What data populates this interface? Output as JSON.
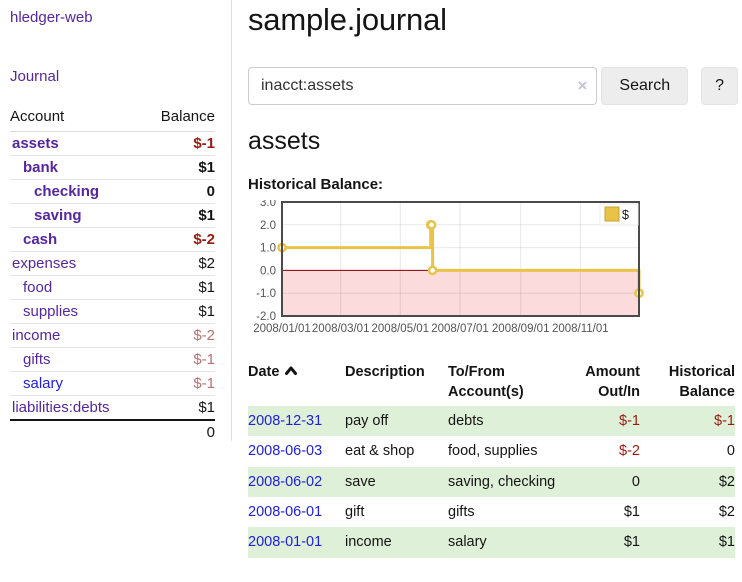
{
  "colors": {
    "link_purple": "#5526a0",
    "link_blue": "#2020dd",
    "negative_strong": "#991b10",
    "negative_soft": "#b97070",
    "row_stripe_green": "#dff0d8",
    "chart_series_yellow": "#e9c347"
  },
  "sidebar": {
    "brand": "hledger-web",
    "journal_link": "Journal",
    "accounts": {
      "headers": [
        "Account",
        "Balance"
      ],
      "rows": [
        {
          "name": "assets",
          "balance": "$-1",
          "indent": 0,
          "bold": true,
          "balance_style": "neg-strong",
          "link_style": "purple"
        },
        {
          "name": "bank",
          "balance": "$1",
          "indent": 1,
          "bold": true,
          "balance_style": "pos",
          "link_style": "purple"
        },
        {
          "name": "checking",
          "balance": "0",
          "indent": 2,
          "bold": true,
          "balance_style": "pos",
          "link_style": "purple"
        },
        {
          "name": "saving",
          "balance": "$1",
          "indent": 2,
          "bold": true,
          "balance_style": "pos",
          "link_style": "purple"
        },
        {
          "name": "cash",
          "balance": "$-2",
          "indent": 1,
          "bold": true,
          "balance_style": "neg-strong",
          "link_style": "purple"
        },
        {
          "name": "expenses",
          "balance": "$2",
          "indent": 0,
          "bold": false,
          "balance_style": "pos",
          "link_style": "purple"
        },
        {
          "name": "food",
          "balance": "$1",
          "indent": 1,
          "bold": false,
          "balance_style": "pos",
          "link_style": "purple"
        },
        {
          "name": "supplies",
          "balance": "$1",
          "indent": 1,
          "bold": false,
          "balance_style": "pos",
          "link_style": "purple"
        },
        {
          "name": "income",
          "balance": "$-2",
          "indent": 0,
          "bold": false,
          "balance_style": "neg-soft",
          "link_style": "purple"
        },
        {
          "name": "gifts",
          "balance": "$-1",
          "indent": 1,
          "bold": false,
          "balance_style": "neg-soft",
          "link_style": "purple"
        },
        {
          "name": "salary",
          "balance": "$-1",
          "indent": 1,
          "bold": false,
          "balance_style": "neg-soft",
          "link_style": "blue"
        },
        {
          "name": "liabilities:debts",
          "balance": "$1",
          "indent": 0,
          "bold": false,
          "balance_style": "pos",
          "link_style": "purple"
        }
      ],
      "total": "0"
    }
  },
  "header": {
    "title": "sample.journal"
  },
  "search": {
    "value": "inacct:assets",
    "clear_icon": "×",
    "button": "Search",
    "help_button": "?"
  },
  "account_page": {
    "title": "assets",
    "chart_label": "Historical Balance:"
  },
  "chart_data": {
    "type": "line",
    "step": true,
    "title": "Historical Balance:",
    "series": [
      {
        "name": "$",
        "color": "#e9c347",
        "points": [
          [
            "2008-01-01",
            1
          ],
          [
            "2008-06-01",
            2
          ],
          [
            "2008-06-02",
            2
          ],
          [
            "2008-06-03",
            0
          ],
          [
            "2008-12-31",
            -1
          ]
        ]
      }
    ],
    "x_start": "2008-01-01",
    "x_end": "2008-12-31",
    "x_ticks": [
      {
        "date": "2008-01-01",
        "label": "2008/01/01"
      },
      {
        "date": "2008-03-01",
        "label": "2008/03/01"
      },
      {
        "date": "2008-05-01",
        "label": "2008/05/01"
      },
      {
        "date": "2008-07-01",
        "label": "2008/07/01"
      },
      {
        "date": "2008-09-01",
        "label": "2008/09/01"
      },
      {
        "date": "2008-11-01",
        "label": "2008/11/01"
      }
    ],
    "y_ticks": [
      {
        "v": 3,
        "label": "3.0"
      },
      {
        "v": 2,
        "label": "2.0"
      },
      {
        "v": 1,
        "label": "1.0"
      },
      {
        "v": 0,
        "label": "0.0"
      },
      {
        "v": -1,
        "label": "-1.0"
      },
      {
        "v": -2,
        "label": "-2.0"
      }
    ],
    "ylim": [
      -2,
      3
    ],
    "grid": true,
    "legend_label": "$",
    "legend_position": "top-right",
    "negative_fill": "#fbdbdb",
    "zero_line": "#8b0000"
  },
  "register": {
    "headers": {
      "date": "Date",
      "description": "Description",
      "tofrom": "To/From Account(s)",
      "amount": "Amount Out/In",
      "balance": "Historical Balance"
    },
    "rows": [
      {
        "date": "2008-12-31",
        "description": "pay off",
        "accounts": "debts",
        "amount": "$-1",
        "amount_neg": true,
        "balance": "$-1",
        "balance_neg": true,
        "striped": true
      },
      {
        "date": "2008-06-03",
        "description": "eat & shop",
        "accounts": "food, supplies",
        "amount": "$-2",
        "amount_neg": true,
        "balance": "0",
        "balance_neg": false,
        "striped": false
      },
      {
        "date": "2008-06-02",
        "description": "save",
        "accounts": "saving, checking",
        "amount": "0",
        "amount_neg": false,
        "balance": "$2",
        "balance_neg": false,
        "striped": true
      },
      {
        "date": "2008-06-01",
        "description": "gift",
        "accounts": "gifts",
        "amount": "$1",
        "amount_neg": false,
        "balance": "$2",
        "balance_neg": false,
        "striped": false
      },
      {
        "date": "2008-01-01",
        "description": "income",
        "accounts": "salary",
        "amount": "$1",
        "amount_neg": false,
        "balance": "$1",
        "balance_neg": false,
        "striped": true
      }
    ]
  }
}
